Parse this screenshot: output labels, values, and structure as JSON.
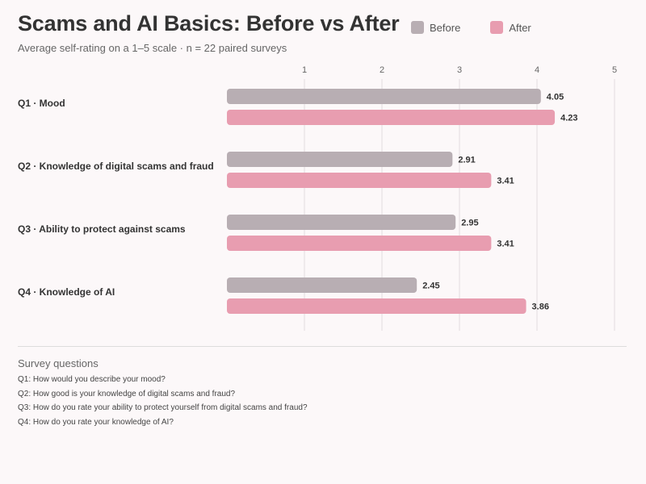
{
  "header": {
    "title": "Scams and AI Basics: Before vs After",
    "subtitle": "Average self-rating on a 1–5 scale · n = 22 paired surveys"
  },
  "legend": [
    {
      "label": "Before",
      "color": "#b8aeb3"
    },
    {
      "label": "After",
      "color": "#e89db0"
    }
  ],
  "chart_data": {
    "type": "bar",
    "orientation": "horizontal",
    "categories": [
      "Q1 · Mood",
      "Q2 · Knowledge of digital scams and fraud",
      "Q3 · Ability to protect against scams",
      "Q4 · Knowledge of AI"
    ],
    "series": [
      {
        "name": "Before",
        "color": "#b8aeb3",
        "values": [
          4.05,
          2.91,
          2.95,
          2.45
        ]
      },
      {
        "name": "After",
        "color": "#e89db0",
        "values": [
          4.23,
          3.41,
          3.41,
          3.86
        ]
      }
    ],
    "xticks": [
      "1",
      "2",
      "3",
      "4",
      "5"
    ],
    "xlim": [
      0,
      5
    ],
    "grid": "vertical",
    "legend_position": "top-right",
    "value_labels": true
  },
  "notes": {
    "title": "Survey questions",
    "items": [
      "Q1: How would you describe your mood?",
      "Q2: How good is your knowledge of digital scams and fraud?",
      "Q3: How do you rate your ability to protect yourself from digital scams and fraud?",
      "Q4: How do you rate your knowledge of AI?"
    ]
  }
}
